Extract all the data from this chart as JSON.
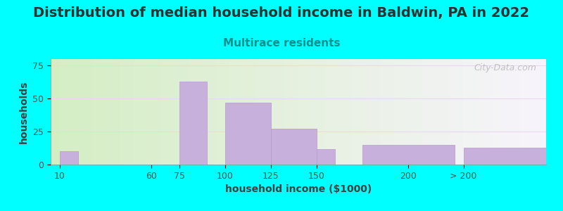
{
  "title": "Distribution of median household income in Baldwin, PA in 2022",
  "subtitle": "Multirace residents",
  "xlabel": "household income ($1000)",
  "ylabel": "households",
  "title_fontsize": 14,
  "subtitle_fontsize": 11,
  "label_fontsize": 10,
  "tick_fontsize": 9,
  "background_color": "#00FFFF",
  "plot_bg_gradient_left": "#d4eec4",
  "plot_bg_gradient_right": "#f8f4fc",
  "bar_color": "#c8b0dc",
  "bar_edge_color": "#b898cc",
  "grid_color": "#e8d8f0",
  "title_color": "#303030",
  "subtitle_color": "#009090",
  "axis_label_color": "#404040",
  "tick_label_color": "#505050",
  "bar_positions": [
    10,
    75,
    100,
    125,
    150,
    175,
    230
  ],
  "bar_widths": [
    10,
    15,
    25,
    25,
    10,
    50,
    80
  ],
  "values": [
    10,
    63,
    47,
    27,
    12,
    15,
    13
  ],
  "ylim": [
    0,
    80
  ],
  "yticks": [
    0,
    25,
    50,
    75
  ],
  "xtick_positions": [
    10,
    60,
    75,
    100,
    125,
    150,
    200,
    230
  ],
  "xtick_labels": [
    "10",
    "60",
    "75",
    "100",
    "125",
    "150",
    "200",
    "> 200"
  ],
  "xlim": [
    5,
    275
  ],
  "watermark_text": "City-Data.com"
}
